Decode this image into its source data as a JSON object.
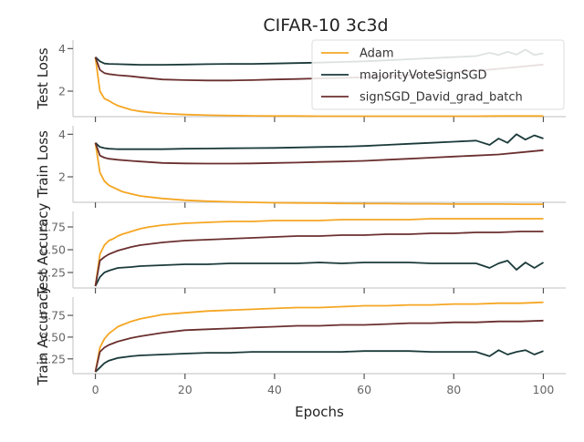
{
  "chart_data": {
    "type": "line",
    "title": "CIFAR-10 3c3d",
    "xlabel": "Epochs",
    "xlim": [
      -5,
      105
    ],
    "xticks": [
      0,
      20,
      40,
      60,
      80,
      100
    ],
    "legend": {
      "placement": "top-right",
      "entries": [
        "Adam",
        "majorityVoteSignSGD",
        "signSGD_David_grad_batch"
      ]
    },
    "colors": {
      "Adam": "#f5a623",
      "majorityVoteSignSGD": "#1b3a3a",
      "signSGD_David_grad_batch": "#6b2f2f",
      "spine": "#cccccc",
      "tick": "#555555"
    },
    "panels": [
      {
        "id": "test-loss",
        "ylabel": "Test Loss",
        "ylim": [
          0.8,
          4.4
        ],
        "yticks": [
          2,
          4
        ],
        "ytick_labels": [
          "2",
          "4"
        ],
        "series": [
          {
            "name": "Adam",
            "x": [
              0,
              1,
              2,
              3,
              4,
              5,
              6,
              8,
              10,
              12,
              15,
              20,
              25,
              30,
              35,
              40,
              45,
              50,
              55,
              60,
              65,
              70,
              75,
              80,
              85,
              90,
              95,
              100
            ],
            "y": [
              3.6,
              2.0,
              1.65,
              1.55,
              1.42,
              1.32,
              1.25,
              1.12,
              1.05,
              1.0,
              0.95,
              0.9,
              0.87,
              0.85,
              0.84,
              0.83,
              0.83,
              0.82,
              0.82,
              0.82,
              0.82,
              0.82,
              0.82,
              0.82,
              0.82,
              0.83,
              0.83,
              0.83
            ]
          },
          {
            "name": "majorityVoteSignSGD",
            "x": [
              0,
              1,
              2,
              3,
              5,
              8,
              10,
              15,
              20,
              25,
              30,
              35,
              40,
              45,
              50,
              55,
              60,
              65,
              70,
              75,
              80,
              85,
              88,
              90,
              92,
              94,
              96,
              98,
              100
            ],
            "y": [
              3.6,
              3.4,
              3.3,
              3.28,
              3.27,
              3.25,
              3.24,
              3.24,
              3.25,
              3.27,
              3.28,
              3.28,
              3.3,
              3.32,
              3.34,
              3.37,
              3.4,
              3.45,
              3.5,
              3.55,
              3.6,
              3.65,
              3.8,
              3.7,
              3.85,
              3.72,
              3.95,
              3.7,
              3.78
            ]
          },
          {
            "name": "signSGD_David_grad_batch",
            "x": [
              0,
              1,
              2,
              3,
              5,
              8,
              10,
              15,
              20,
              25,
              30,
              35,
              40,
              45,
              50,
              55,
              60,
              65,
              70,
              75,
              80,
              85,
              90,
              95,
              100
            ],
            "y": [
              3.6,
              3.0,
              2.85,
              2.8,
              2.75,
              2.7,
              2.65,
              2.55,
              2.52,
              2.5,
              2.5,
              2.52,
              2.55,
              2.57,
              2.6,
              2.62,
              2.65,
              2.7,
              2.75,
              2.8,
              2.9,
              2.95,
              3.05,
              3.15,
              3.25
            ]
          }
        ]
      },
      {
        "id": "train-loss",
        "ylabel": "Train Loss",
        "ylim": [
          0.8,
          4.4
        ],
        "yticks": [
          2,
          4
        ],
        "ytick_labels": [
          "2",
          "4"
        ],
        "series": [
          {
            "name": "Adam",
            "x": [
              0,
              1,
              2,
              3,
              4,
              5,
              6,
              8,
              10,
              12,
              15,
              20,
              25,
              30,
              35,
              40,
              45,
              50,
              55,
              60,
              65,
              70,
              75,
              80,
              85,
              90,
              95,
              100
            ],
            "y": [
              3.6,
              2.2,
              1.8,
              1.6,
              1.5,
              1.4,
              1.3,
              1.2,
              1.1,
              1.05,
              0.98,
              0.9,
              0.85,
              0.82,
              0.8,
              0.78,
              0.77,
              0.76,
              0.75,
              0.74,
              0.74,
              0.73,
              0.73,
              0.72,
              0.72,
              0.72,
              0.71,
              0.71
            ]
          },
          {
            "name": "majorityVoteSignSGD",
            "x": [
              0,
              1,
              2,
              3,
              5,
              8,
              10,
              15,
              20,
              25,
              30,
              35,
              40,
              45,
              50,
              55,
              60,
              65,
              70,
              75,
              80,
              85,
              88,
              90,
              92,
              94,
              96,
              98,
              100
            ],
            "y": [
              3.6,
              3.4,
              3.35,
              3.32,
              3.3,
              3.3,
              3.3,
              3.3,
              3.32,
              3.33,
              3.34,
              3.35,
              3.36,
              3.38,
              3.4,
              3.42,
              3.45,
              3.5,
              3.55,
              3.6,
              3.65,
              3.7,
              3.5,
              3.8,
              3.6,
              4.0,
              3.75,
              3.95,
              3.8
            ]
          },
          {
            "name": "signSGD_David_grad_batch",
            "x": [
              0,
              1,
              2,
              3,
              5,
              8,
              10,
              15,
              20,
              25,
              30,
              35,
              40,
              45,
              50,
              55,
              60,
              65,
              70,
              75,
              80,
              85,
              90,
              95,
              100
            ],
            "y": [
              3.6,
              3.0,
              2.9,
              2.85,
              2.8,
              2.75,
              2.72,
              2.65,
              2.63,
              2.62,
              2.62,
              2.63,
              2.65,
              2.67,
              2.7,
              2.72,
              2.75,
              2.8,
              2.85,
              2.9,
              2.95,
              3.0,
              3.05,
              3.15,
              3.25
            ]
          }
        ]
      },
      {
        "id": "test-accuracy",
        "ylabel": "Test Accuracy",
        "ylim": [
          0.08,
          0.92
        ],
        "yticks": [
          0.25,
          0.5,
          0.75
        ],
        "ytick_labels": [
          "0.25",
          "0.50",
          "0.75"
        ],
        "series": [
          {
            "name": "Adam",
            "x": [
              0,
              1,
              2,
              3,
              4,
              5,
              6,
              8,
              10,
              12,
              15,
              20,
              25,
              30,
              35,
              40,
              45,
              50,
              55,
              60,
              65,
              70,
              75,
              80,
              85,
              90,
              95,
              100
            ],
            "y": [
              0.1,
              0.45,
              0.55,
              0.6,
              0.62,
              0.65,
              0.67,
              0.7,
              0.73,
              0.75,
              0.77,
              0.79,
              0.8,
              0.81,
              0.81,
              0.82,
              0.82,
              0.82,
              0.83,
              0.83,
              0.83,
              0.83,
              0.84,
              0.84,
              0.84,
              0.84,
              0.84,
              0.84
            ]
          },
          {
            "name": "majorityVoteSignSGD",
            "x": [
              0,
              1,
              2,
              3,
              5,
              8,
              10,
              15,
              20,
              25,
              30,
              35,
              40,
              45,
              50,
              55,
              60,
              65,
              70,
              75,
              80,
              85,
              88,
              90,
              92,
              94,
              96,
              98,
              100
            ],
            "y": [
              0.1,
              0.2,
              0.25,
              0.27,
              0.3,
              0.31,
              0.32,
              0.33,
              0.34,
              0.34,
              0.35,
              0.35,
              0.35,
              0.35,
              0.36,
              0.35,
              0.36,
              0.36,
              0.36,
              0.35,
              0.35,
              0.35,
              0.3,
              0.35,
              0.38,
              0.28,
              0.36,
              0.3,
              0.36
            ]
          },
          {
            "name": "signSGD_David_grad_batch",
            "x": [
              0,
              1,
              2,
              3,
              5,
              8,
              10,
              15,
              20,
              25,
              30,
              35,
              40,
              45,
              50,
              55,
              60,
              65,
              70,
              75,
              80,
              85,
              90,
              95,
              100
            ],
            "y": [
              0.1,
              0.38,
              0.42,
              0.45,
              0.49,
              0.53,
              0.55,
              0.58,
              0.6,
              0.61,
              0.62,
              0.63,
              0.64,
              0.65,
              0.65,
              0.66,
              0.66,
              0.67,
              0.67,
              0.68,
              0.68,
              0.69,
              0.69,
              0.7,
              0.7
            ]
          }
        ]
      },
      {
        "id": "train-accuracy",
        "ylabel": "Train Accuracy",
        "ylim": [
          0.08,
          0.96
        ],
        "yticks": [
          0.25,
          0.5,
          0.75
        ],
        "ytick_labels": [
          "0.25",
          "0.50",
          "0.75"
        ],
        "series": [
          {
            "name": "Adam",
            "x": [
              0,
              1,
              2,
              3,
              4,
              5,
              6,
              8,
              10,
              12,
              15,
              20,
              25,
              30,
              35,
              40,
              45,
              50,
              55,
              60,
              65,
              70,
              75,
              80,
              85,
              90,
              95,
              100
            ],
            "y": [
              0.1,
              0.38,
              0.48,
              0.54,
              0.58,
              0.62,
              0.64,
              0.68,
              0.71,
              0.73,
              0.76,
              0.78,
              0.8,
              0.81,
              0.82,
              0.83,
              0.84,
              0.84,
              0.85,
              0.86,
              0.86,
              0.87,
              0.87,
              0.88,
              0.88,
              0.89,
              0.89,
              0.9
            ]
          },
          {
            "name": "majorityVoteSignSGD",
            "x": [
              0,
              1,
              2,
              3,
              5,
              8,
              10,
              15,
              20,
              25,
              30,
              35,
              40,
              45,
              50,
              55,
              60,
              65,
              70,
              75,
              80,
              85,
              88,
              90,
              92,
              94,
              96,
              98,
              100
            ],
            "y": [
              0.1,
              0.15,
              0.2,
              0.23,
              0.26,
              0.28,
              0.29,
              0.3,
              0.31,
              0.32,
              0.32,
              0.33,
              0.33,
              0.33,
              0.33,
              0.33,
              0.34,
              0.34,
              0.34,
              0.33,
              0.33,
              0.33,
              0.28,
              0.35,
              0.3,
              0.33,
              0.35,
              0.3,
              0.34
            ]
          },
          {
            "name": "signSGD_David_grad_batch",
            "x": [
              0,
              1,
              2,
              3,
              5,
              8,
              10,
              15,
              20,
              25,
              30,
              35,
              40,
              45,
              50,
              55,
              60,
              65,
              70,
              75,
              80,
              85,
              90,
              95,
              100
            ],
            "y": [
              0.1,
              0.33,
              0.38,
              0.41,
              0.45,
              0.49,
              0.51,
              0.55,
              0.58,
              0.59,
              0.6,
              0.61,
              0.62,
              0.63,
              0.63,
              0.64,
              0.64,
              0.65,
              0.66,
              0.66,
              0.67,
              0.67,
              0.68,
              0.68,
              0.69
            ]
          }
        ]
      }
    ]
  }
}
